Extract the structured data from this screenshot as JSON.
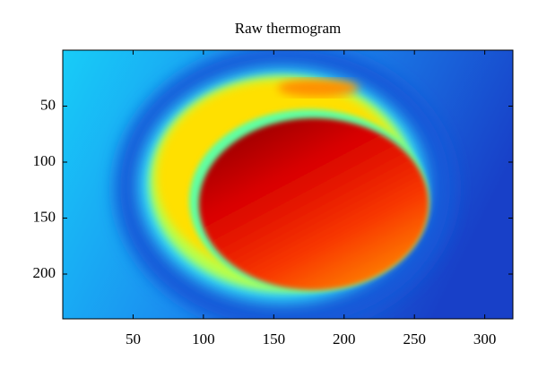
{
  "chart_data": {
    "type": "image",
    "title": "Raw thermogram",
    "xlim": [
      0,
      320
    ],
    "xticks": [
      50,
      100,
      150,
      200,
      250,
      300
    ],
    "ylim": [
      0,
      240
    ],
    "yticks": [
      50,
      100,
      150,
      200
    ],
    "yreverse": true
  }
}
